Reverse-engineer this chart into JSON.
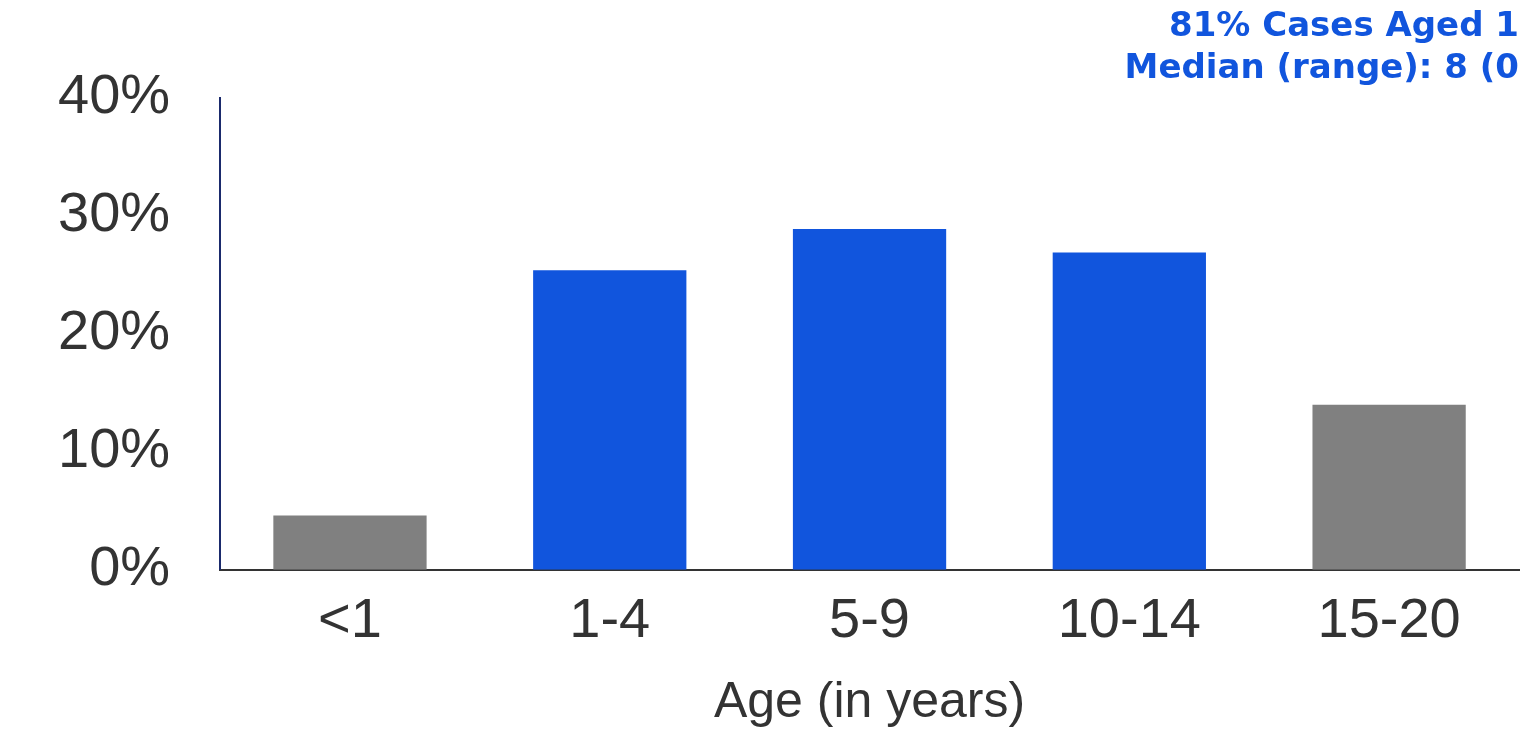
{
  "chart_data": {
    "type": "bar",
    "xlabel": "Age (in years)",
    "categories": [
      "<1",
      "1-4",
      "5-9",
      "10-14",
      "15-20"
    ],
    "values": [
      4.6,
      25.4,
      28.9,
      26.9,
      14.0
    ],
    "colors": [
      "#808080",
      "#1155dd",
      "#1155dd",
      "#1155dd",
      "#808080"
    ],
    "ylim": [
      0,
      40
    ],
    "yticks": [
      {
        "value": 0,
        "label": "0%"
      },
      {
        "value": 10,
        "label": "10%"
      },
      {
        "value": 20,
        "label": "20%"
      },
      {
        "value": 30,
        "label": "30%"
      },
      {
        "value": 40,
        "label": "40%"
      }
    ],
    "annotations": [
      "81% Cases Aged 1",
      "Median (range): 8 (0"
    ],
    "grid": false,
    "legend": false
  }
}
